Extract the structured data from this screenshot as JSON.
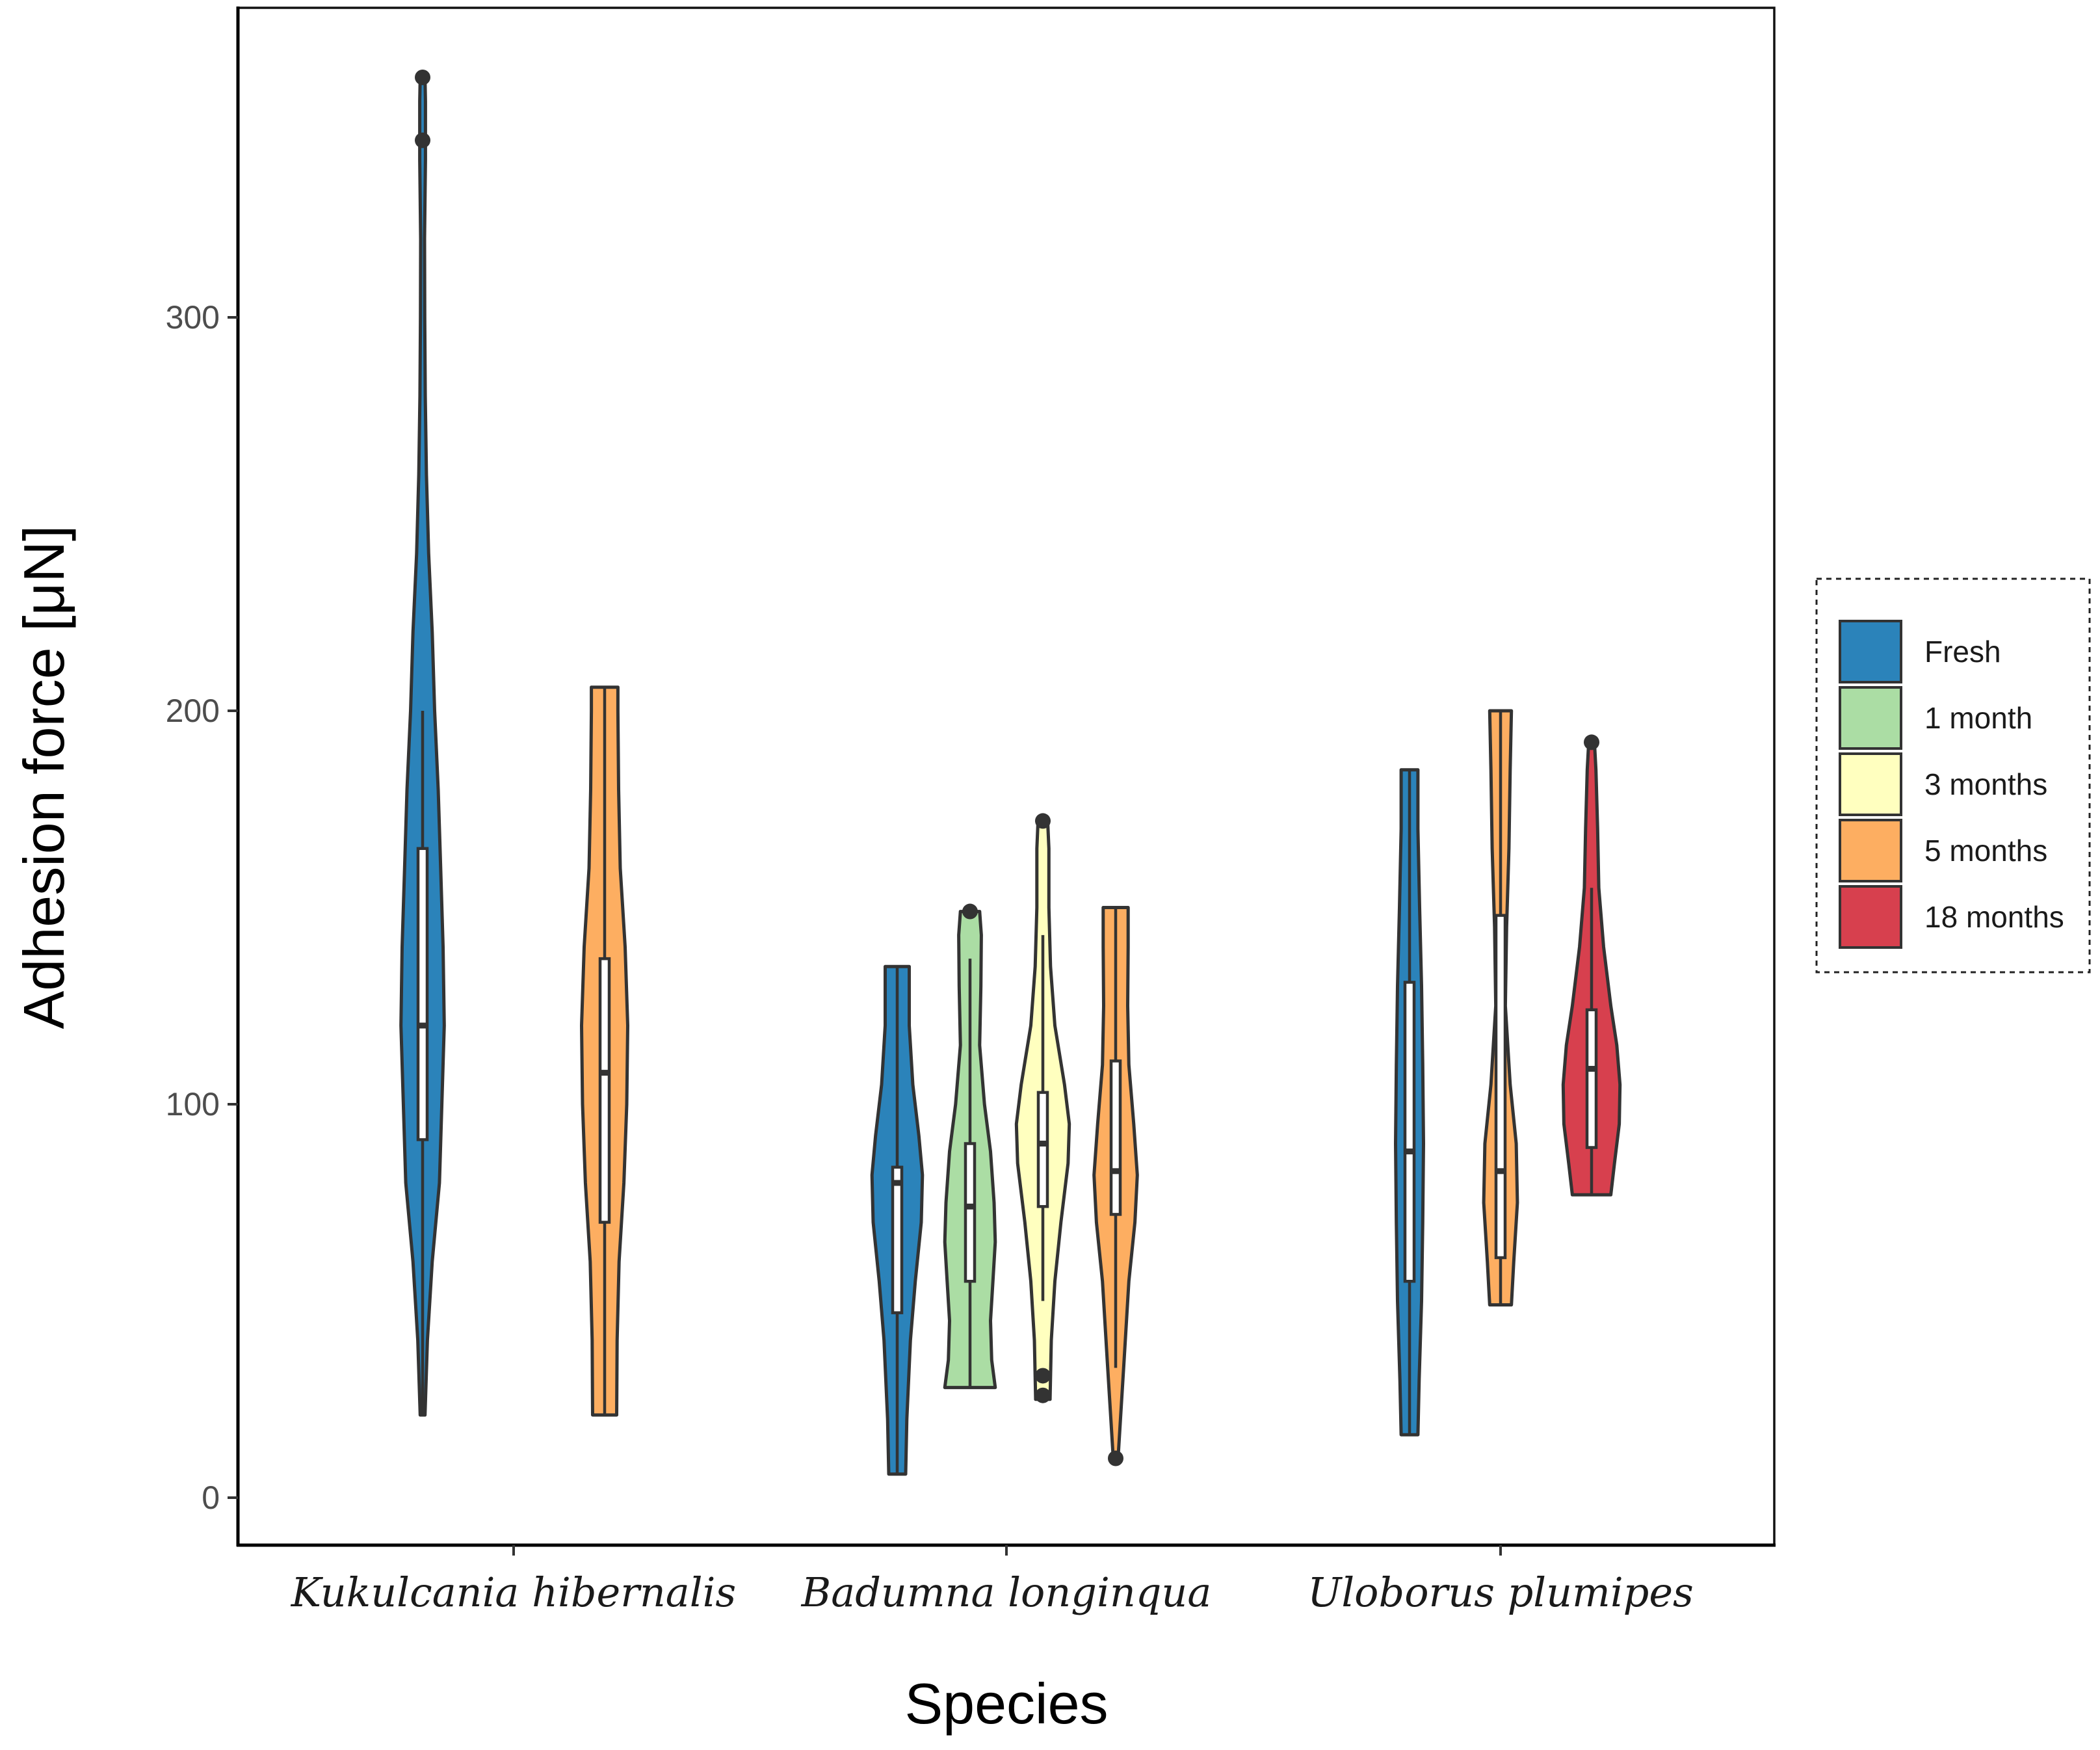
{
  "chart_data": {
    "type": "violin",
    "xlabel": "Species",
    "ylabel": "Adhesion force [μN]",
    "ylim": [
      -10,
      380
    ],
    "y_ticks": [
      0,
      100,
      200,
      300
    ],
    "grid": false,
    "legend_position": "right",
    "categories": [
      "Kukulcania hibernalis",
      "Badumna longinqua",
      "Uloborus plumipes"
    ],
    "series": [
      {
        "name": "Fresh",
        "color": "#2b83ba"
      },
      {
        "name": "1 month",
        "color": "#abdda4"
      },
      {
        "name": "3 months",
        "color": "#ffffbf"
      },
      {
        "name": "5 months",
        "color": "#fdae61"
      },
      {
        "name": "18 months",
        "color": "#d7404e"
      }
    ],
    "violins": [
      {
        "category": "Kukulcania hibernalis",
        "series": "Fresh",
        "offset": -0.25,
        "min": 21,
        "max": 361,
        "q1": 91,
        "median": 120,
        "q3": 165,
        "whisker_low": 21,
        "whisker_high": 200,
        "outliers": [
          361,
          345
        ],
        "profile": [
          [
            21,
            1
          ],
          [
            40,
            2
          ],
          [
            60,
            4
          ],
          [
            80,
            7
          ],
          [
            100,
            8
          ],
          [
            120,
            9
          ],
          [
            140,
            8.5
          ],
          [
            160,
            7.5
          ],
          [
            180,
            6.5
          ],
          [
            200,
            5
          ],
          [
            220,
            4
          ],
          [
            240,
            2.5
          ],
          [
            260,
            1.6
          ],
          [
            280,
            1.1
          ],
          [
            300,
            0.9
          ],
          [
            320,
            0.8
          ],
          [
            340,
            1.2
          ],
          [
            355,
            1.2
          ],
          [
            361,
            1
          ]
        ]
      },
      {
        "category": "Kukulcania hibernalis",
        "series": "5 months",
        "offset": 0.25,
        "min": 21,
        "max": 206,
        "q1": 70,
        "median": 108,
        "q3": 137,
        "whisker_low": 21,
        "whisker_high": 206,
        "outliers": [],
        "profile": [
          [
            21,
            5
          ],
          [
            40,
            5.2
          ],
          [
            60,
            6
          ],
          [
            80,
            8
          ],
          [
            100,
            9.2
          ],
          [
            120,
            9.6
          ],
          [
            140,
            8.5
          ],
          [
            160,
            6.5
          ],
          [
            180,
            5.8
          ],
          [
            200,
            5.5
          ],
          [
            206,
            5.5
          ]
        ]
      },
      {
        "category": "Badumna longinqua",
        "series": "Fresh",
        "offset": -0.3,
        "min": 6,
        "max": 135,
        "q1": 47,
        "median": 80,
        "q3": 84,
        "whisker_low": 6,
        "whisker_high": 135,
        "outliers": [],
        "profile": [
          [
            6,
            3.5
          ],
          [
            20,
            4
          ],
          [
            40,
            5.5
          ],
          [
            55,
            7.5
          ],
          [
            70,
            10
          ],
          [
            82,
            10.5
          ],
          [
            92,
            9
          ],
          [
            105,
            6.5
          ],
          [
            120,
            5
          ],
          [
            135,
            5
          ]
        ]
      },
      {
        "category": "Badumna longinqua",
        "series": "1 month",
        "offset": -0.1,
        "min": 28,
        "max": 149,
        "q1": 55,
        "median": 74,
        "q3": 90,
        "whisker_low": 28,
        "whisker_high": 137,
        "outliers": [
          149
        ],
        "profile": [
          [
            28,
            10.5
          ],
          [
            35,
            9
          ],
          [
            45,
            8.5
          ],
          [
            55,
            9.5
          ],
          [
            65,
            10.5
          ],
          [
            75,
            10
          ],
          [
            88,
            8.5
          ],
          [
            100,
            6
          ],
          [
            115,
            4
          ],
          [
            130,
            4.5
          ],
          [
            143,
            4.7
          ],
          [
            149,
            4
          ]
        ]
      },
      {
        "category": "Badumna longinqua",
        "series": "3 months",
        "offset": 0.1,
        "min": 25,
        "max": 172,
        "q1": 74,
        "median": 90,
        "q3": 103,
        "whisker_low": 50,
        "whisker_high": 143,
        "outliers": [
          172,
          31,
          26
        ],
        "profile": [
          [
            25,
            3
          ],
          [
            40,
            3.5
          ],
          [
            55,
            5
          ],
          [
            70,
            7.5
          ],
          [
            85,
            10.5
          ],
          [
            95,
            11
          ],
          [
            105,
            9
          ],
          [
            120,
            5
          ],
          [
            135,
            3.2
          ],
          [
            150,
            2.5
          ],
          [
            165,
            2.5
          ],
          [
            172,
            2
          ]
        ]
      },
      {
        "category": "Badumna longinqua",
        "series": "5 months",
        "offset": 0.3,
        "min": 10,
        "max": 150,
        "q1": 72,
        "median": 83,
        "q3": 111,
        "whisker_low": 33,
        "whisker_high": 150,
        "outliers": [
          10
        ],
        "profile": [
          [
            10,
            1
          ],
          [
            20,
            2
          ],
          [
            35,
            3.5
          ],
          [
            55,
            5.5
          ],
          [
            70,
            8
          ],
          [
            82,
            9
          ],
          [
            95,
            7.5
          ],
          [
            110,
            5.5
          ],
          [
            125,
            5
          ],
          [
            140,
            5.2
          ],
          [
            150,
            5.2
          ]
        ]
      },
      {
        "category": "Uloborus plumipes",
        "series": "Fresh",
        "offset": -0.25,
        "min": 16,
        "max": 185,
        "q1": 55,
        "median": 88,
        "q3": 131,
        "whisker_low": 16,
        "whisker_high": 185,
        "outliers": [],
        "profile": [
          [
            16,
            3.5
          ],
          [
            30,
            4
          ],
          [
            50,
            5
          ],
          [
            70,
            5.5
          ],
          [
            90,
            5.8
          ],
          [
            110,
            5.5
          ],
          [
            130,
            5
          ],
          [
            150,
            4.2
          ],
          [
            170,
            3.5
          ],
          [
            185,
            3.5
          ]
        ]
      },
      {
        "category": "Uloborus plumipes",
        "series": "5 months",
        "offset": 0,
        "min": 49,
        "max": 200,
        "q1": 61,
        "median": 83,
        "q3": 148,
        "whisker_low": 49,
        "whisker_high": 200,
        "outliers": [],
        "profile": [
          [
            49,
            4.5
          ],
          [
            60,
            5.5
          ],
          [
            75,
            7
          ],
          [
            90,
            6.5
          ],
          [
            105,
            4
          ],
          [
            125,
            2
          ],
          [
            145,
            2.5
          ],
          [
            165,
            3.5
          ],
          [
            185,
            4
          ],
          [
            200,
            4.5
          ]
        ]
      },
      {
        "category": "Uloborus plumipes",
        "series": "18 months",
        "offset": 0.25,
        "min": 77,
        "max": 192,
        "q1": 89,
        "median": 109,
        "q3": 124,
        "whisker_low": 77,
        "whisker_high": 155,
        "outliers": [
          192
        ],
        "profile": [
          [
            77,
            8
          ],
          [
            85,
            9.5
          ],
          [
            95,
            11.5
          ],
          [
            105,
            11.8
          ],
          [
            115,
            10.5
          ],
          [
            125,
            8
          ],
          [
            140,
            5
          ],
          [
            155,
            3
          ],
          [
            170,
            2.5
          ],
          [
            185,
            1.8
          ],
          [
            192,
            1.2
          ]
        ]
      }
    ]
  }
}
